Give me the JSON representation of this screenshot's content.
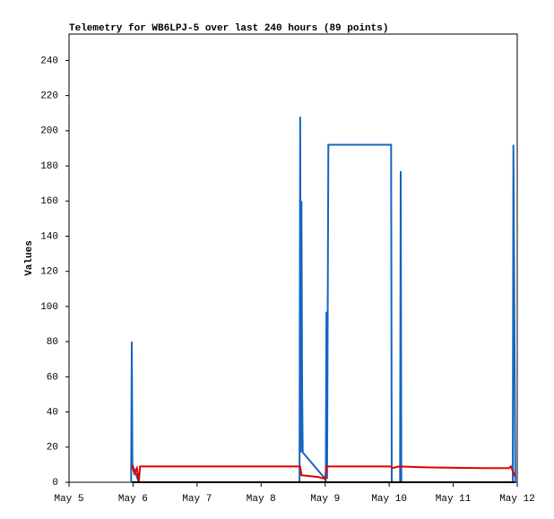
{
  "chart_data": {
    "type": "line",
    "title": "Telemetry for WB6LPJ-5 over last 240 hours (89 points)",
    "y_label": "Values",
    "xlim": [
      5,
      12
    ],
    "xticks": [
      {
        "value": 5,
        "label": "May 5"
      },
      {
        "value": 6,
        "label": "May 6"
      },
      {
        "value": 7,
        "label": "May 7"
      },
      {
        "value": 8,
        "label": "May 8"
      },
      {
        "value": 9,
        "label": "May 9"
      },
      {
        "value": 10,
        "label": "May 10"
      },
      {
        "value": 11,
        "label": "May 11"
      },
      {
        "value": 12,
        "label": "May 12"
      }
    ],
    "ylim": [
      0,
      255
    ],
    "yticks": [
      0,
      20,
      40,
      60,
      80,
      100,
      120,
      140,
      160,
      180,
      200,
      220,
      240
    ],
    "grid": false,
    "series": [
      {
        "color": "#1565c0",
        "x": [
          5.97,
          5.98,
          5.99,
          6.05,
          6.09,
          8.6,
          8.61,
          8.62,
          8.63,
          8.64,
          8.65,
          9.0,
          9.01,
          9.02,
          9.03,
          9.05,
          10.03,
          10.04,
          10.17,
          10.18,
          10.19,
          11.93,
          11.94,
          11.97
        ],
        "values": [
          0,
          80,
          10,
          4,
          0,
          0,
          208,
          17,
          160,
          56,
          17,
          2,
          0,
          97,
          2,
          192,
          192,
          0,
          0,
          177,
          0,
          0,
          192,
          0
        ]
      },
      {
        "color": "#e00000",
        "x": [
          5.98,
          6.02,
          6.06,
          6.09,
          6.11,
          8.61,
          8.63,
          8.89,
          9.0,
          9.02,
          10.03,
          10.04,
          10.15,
          10.57,
          11.48,
          11.87,
          11.9,
          11.97
        ],
        "values": [
          10,
          5,
          8,
          0,
          9,
          9,
          4,
          3,
          2,
          9,
          9,
          8,
          9,
          8.5,
          8,
          8,
          9,
          3
        ]
      },
      {
        "color": "#000000",
        "x": [
          5.98,
          11.97
        ],
        "values": [
          0,
          0
        ]
      }
    ]
  }
}
